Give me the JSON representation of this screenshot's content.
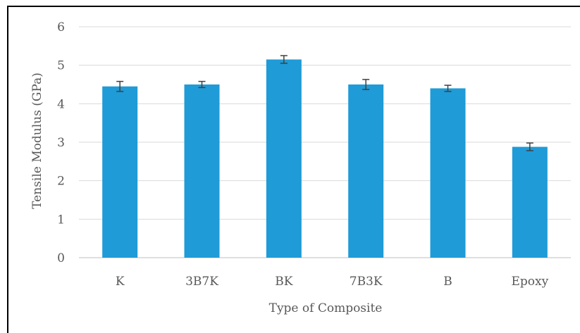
{
  "chart_data": {
    "type": "bar",
    "title": "",
    "xlabel": "Type of Composite",
    "ylabel": "Tensile Modulus (GPa)",
    "categories": [
      "K",
      "3B7K",
      "BK",
      "7B3K",
      "B",
      "Epoxy"
    ],
    "series": [
      {
        "values": [
          4.45,
          4.5,
          5.15,
          4.5,
          4.4,
          2.88
        ],
        "error": [
          0.13,
          0.08,
          0.1,
          0.13,
          0.08,
          0.1
        ]
      }
    ],
    "ylim": [
      0,
      6
    ],
    "yticks": [
      "0",
      "1",
      "2",
      "3",
      "4",
      "5",
      "6"
    ],
    "grid": true,
    "legend": "none",
    "colors": {
      "bar": "#1f9bd7",
      "gridline": "#d9d9d9",
      "text": "#595959",
      "errbar": "#404040"
    }
  }
}
